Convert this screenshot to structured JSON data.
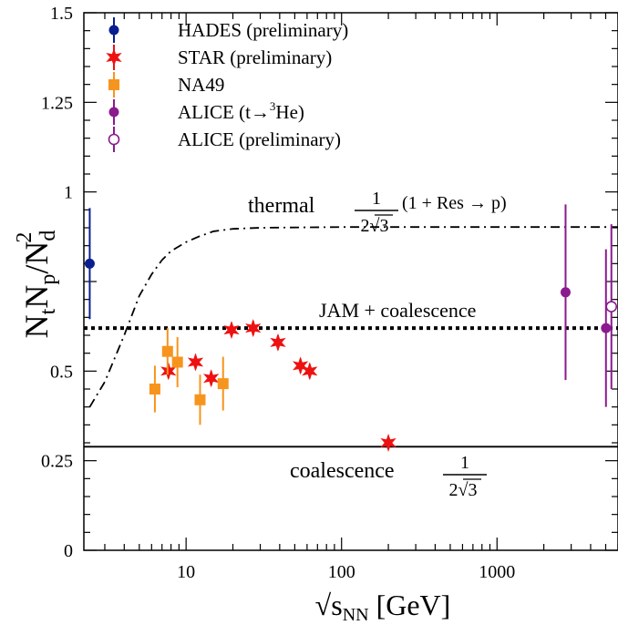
{
  "chart_data": {
    "type": "scatter",
    "title": "",
    "xlabel": "√s",
    "xlabel_sub": "NN",
    "xlabel_unit": "[GeV]",
    "ylabel_parts": [
      "N",
      "t",
      "N",
      "p",
      "/N",
      "d",
      "2"
    ],
    "xscale": "log",
    "xlim": [
      2.2,
      6000
    ],
    "ylim": [
      0,
      1.5
    ],
    "x_ticks": [
      {
        "value": 10,
        "label": "10"
      },
      {
        "value": 100,
        "label": "100"
      },
      {
        "value": 1000,
        "label": "1000"
      }
    ],
    "y_ticks": [
      {
        "value": 0,
        "label": "0"
      },
      {
        "value": 0.25,
        "label": "0.25"
      },
      {
        "value": 0.5,
        "label": "0.5"
      },
      {
        "value": 1.0,
        "label": "1"
      },
      {
        "value": 1.25,
        "label": "1.25"
      },
      {
        "value": 1.5,
        "label": "1.5"
      }
    ],
    "legend_position": "top-left",
    "series": [
      {
        "name": "HADES (preliminary)",
        "marker": "circle",
        "color": "#0a1f8f",
        "points": [
          {
            "x": 2.4,
            "y": 0.8,
            "err": 0.155
          }
        ]
      },
      {
        "name": "STAR (preliminary)",
        "marker": "star",
        "color": "#ee1111",
        "points": [
          {
            "x": 7.7,
            "y": 0.5,
            "err": 0.02
          },
          {
            "x": 11.5,
            "y": 0.525,
            "err": 0.02
          },
          {
            "x": 14.5,
            "y": 0.48,
            "err": 0.02
          },
          {
            "x": 19.6,
            "y": 0.615,
            "err": 0.02
          },
          {
            "x": 27,
            "y": 0.62,
            "err": 0.02
          },
          {
            "x": 39,
            "y": 0.58,
            "err": 0.02
          },
          {
            "x": 54.4,
            "y": 0.515,
            "err": 0.02
          },
          {
            "x": 62.4,
            "y": 0.5,
            "err": 0.02
          },
          {
            "x": 200,
            "y": 0.3,
            "err": 0.015
          }
        ]
      },
      {
        "name": "NA49",
        "marker": "square",
        "color": "#f7941d",
        "points": [
          {
            "x": 6.3,
            "y": 0.45,
            "err": 0.065
          },
          {
            "x": 7.6,
            "y": 0.555,
            "err": 0.065
          },
          {
            "x": 8.8,
            "y": 0.525,
            "err": 0.07
          },
          {
            "x": 12.3,
            "y": 0.42,
            "err": 0.07
          },
          {
            "x": 17.3,
            "y": 0.465,
            "err": 0.075
          }
        ]
      },
      {
        "name": "ALICE (t→³He)",
        "name_parts": [
          "ALICE (t",
          "→",
          "3",
          "He)"
        ],
        "marker": "circle",
        "color": "#8b1a8f",
        "points": [
          {
            "x": 2760,
            "y": 0.72,
            "err": 0.245
          },
          {
            "x": 5020,
            "y": 0.62,
            "err": 0.22
          }
        ]
      },
      {
        "name": "ALICE (preliminary)",
        "marker": "open-circle",
        "color": "#8b1a8f",
        "points": [
          {
            "x": 5440,
            "y": 0.68,
            "err": 0.23
          }
        ]
      }
    ],
    "reference_lines": [
      {
        "name": "thermal",
        "label_text": "thermal",
        "formula": {
          "num": "1",
          "den_pre": "2",
          "den_root": "3",
          "suffix": "(1 + Res → p)"
        },
        "style": "dash-dot",
        "points": [
          [
            2.4,
            0.4
          ],
          [
            3.0,
            0.47
          ],
          [
            4.0,
            0.6
          ],
          [
            5.0,
            0.71
          ],
          [
            6.0,
            0.77
          ],
          [
            7.0,
            0.81
          ],
          [
            8.0,
            0.835
          ],
          [
            10.0,
            0.86
          ],
          [
            12.0,
            0.875
          ],
          [
            15.0,
            0.89
          ],
          [
            20.0,
            0.897
          ],
          [
            30.0,
            0.9
          ],
          [
            100.0,
            0.902
          ],
          [
            6000.0,
            0.902
          ]
        ]
      },
      {
        "name": "JAM + coalescence",
        "label_text": "JAM + coalescence",
        "style": "dotted",
        "y": 0.62
      },
      {
        "name": "coalescence",
        "label_text": "coalescence",
        "formula": {
          "num": "1",
          "den_pre": "2",
          "den_root": "3"
        },
        "style": "solid",
        "y": 0.289
      }
    ]
  }
}
